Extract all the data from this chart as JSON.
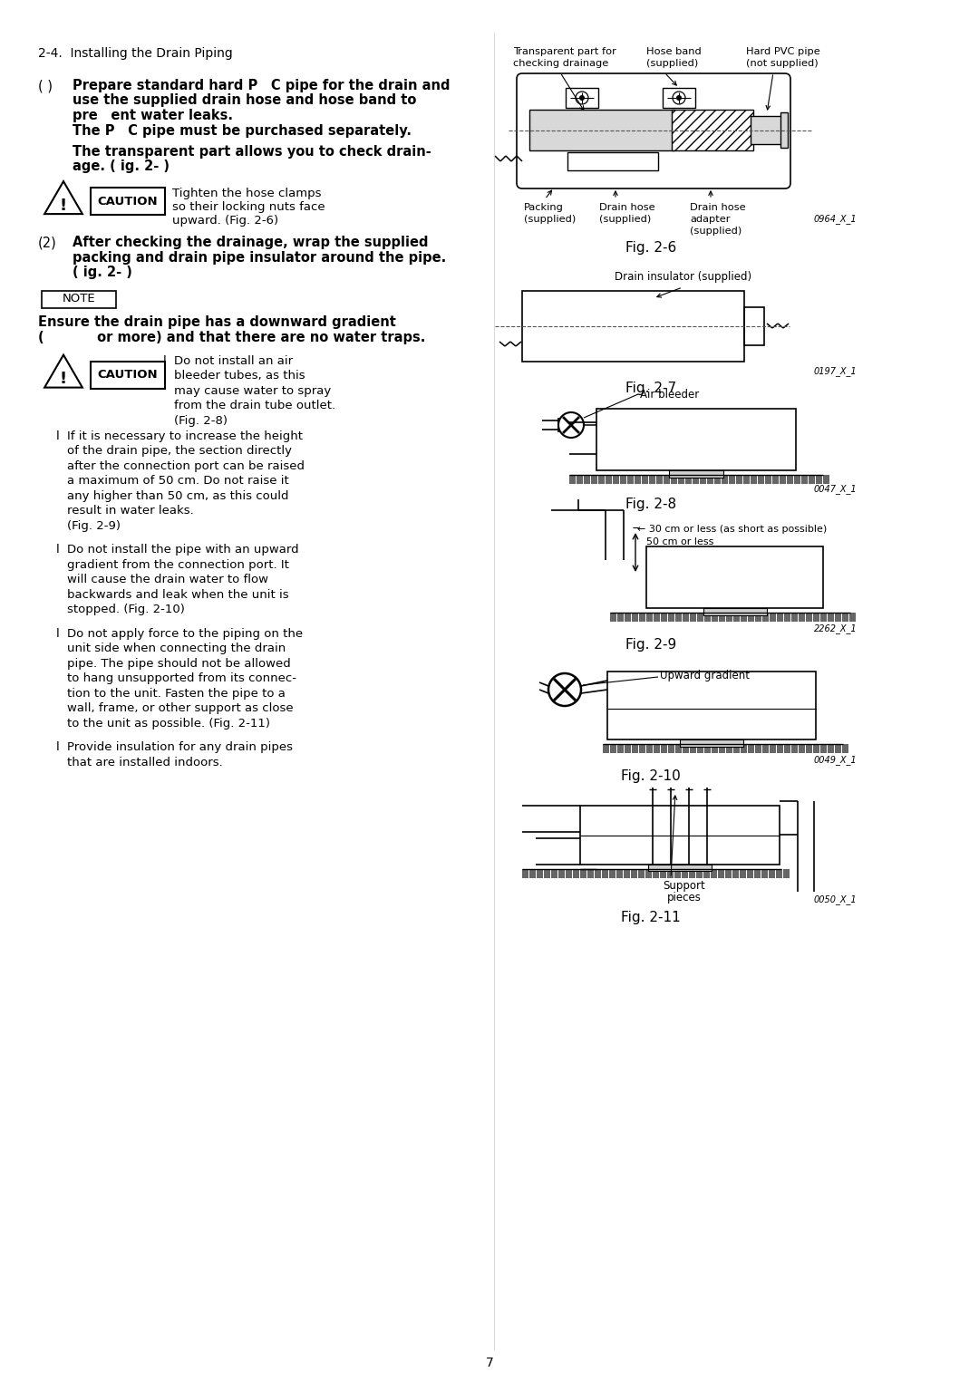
{
  "bg_color": "#ffffff",
  "page_number": "7",
  "section_title": "2-4.  Installing the Drain Piping",
  "left_col": {
    "item1_label": "( )",
    "item1_line1": "Prepare standard hard P C pipe for the drain and",
    "item1_line2": "use the supplied drain hose and hose band to",
    "item1_line3": "pre ent water leaks.",
    "item1_line4": "The P C pipe must be purchased separately.",
    "item1_line5": "The transparent part allows you to check drain-",
    "item1_line6": "age. ( ig. 2- )",
    "caution1_line1": "Tighten the hose clamps",
    "caution1_line2": "so their locking nuts face",
    "caution1_line3": "upward. (Fig. 2-6)",
    "item2_label": "(2)",
    "item2_line1": "After checking the drainage, wrap the supplied",
    "item2_line2": "packing and drain pipe insulator around the pipe.",
    "item2_line3": "( ig. 2- )",
    "note_title": "NOTE",
    "note_line1": "Ensure the drain pipe has a downward gradient",
    "note_line2": "(    or more) and that there are no water traps.",
    "bullet1_marker": "l",
    "bullet1_line1": "Do not install an air",
    "bullet1_line2": "bleeder tubes, as this",
    "bullet1_line3": "may cause water to spray",
    "bullet1_line4": "from the drain tube outlet.",
    "bullet1_line5": "(Fig. 2-8)",
    "bullet2_marker": "l",
    "bullet2_line1": "If it is necessary to increase the height",
    "bullet2_line2": "of the drain pipe, the section directly",
    "bullet2_line3": "after the connection port can be raised",
    "bullet2_line4": "a maximum of 50 cm. Do not raise it",
    "bullet2_line5": "any higher than 50 cm, as this could",
    "bullet2_line6": "result in water leaks.",
    "bullet2_line7": "(Fig. 2-9)",
    "bullet3_marker": "l",
    "bullet3_line1": "Do not install the pipe with an upward",
    "bullet3_line2": "gradient from the connection port. It",
    "bullet3_line3": "will cause the drain water to flow",
    "bullet3_line4": "backwards and leak when the unit is",
    "bullet3_line5": "stopped. (Fig. 2-10)",
    "bullet4_marker": "l",
    "bullet4_line1": "Do not apply force to the piping on the",
    "bullet4_line2": "unit side when connecting the drain",
    "bullet4_line3": "pipe. The pipe should not be allowed",
    "bullet4_line4": "to hang unsupported from its connec-",
    "bullet4_line5": "tion to the unit. Fasten the pipe to a",
    "bullet4_line6": "wall, frame, or other support as close",
    "bullet4_line7": "to the unit as possible. (Fig. 2-11)",
    "bullet5_marker": "l",
    "bullet5_line1": "Provide insulation for any drain pipes",
    "bullet5_line2": "that are installed indoors."
  },
  "right_col": {
    "fig26_label1a": "Transparent part for",
    "fig26_label1b": "checking drainage",
    "fig26_label2a": "Hose band",
    "fig26_label2b": "(supplied)",
    "fig26_label3a": "Hard PVC pipe",
    "fig26_label3b": "(not supplied)",
    "fig26_label4a": "Packing",
    "fig26_label4b": "(supplied)",
    "fig26_label5a": "Drain hose",
    "fig26_label5b": "(supplied)",
    "fig26_label6a": "Drain hose",
    "fig26_label6b": "adapter",
    "fig26_label6c": "(supplied)",
    "fig26_id": "0964_X_1",
    "fig26_caption": "Fig. 2-6",
    "fig27_label": "Drain insulator (supplied)",
    "fig27_id": "0197_X_1",
    "fig27_caption": "Fig. 2-7",
    "fig28_label": "Air bleeder",
    "fig28_id": "0047_X_1",
    "fig28_caption": "Fig. 2-8",
    "fig29_label1": "← 30 cm or less (as short as possible)",
    "fig29_label2": "50 cm or less",
    "fig29_id": "2262_X_1",
    "fig29_caption": "Fig. 2-9",
    "fig210_label": "Upward gradient",
    "fig210_id": "0049_X_1",
    "fig210_caption": "Fig. 2-10",
    "fig211_label1": "Support",
    "fig211_label2": "pieces",
    "fig211_id": "0050_X_1",
    "fig211_caption": "Fig. 2-11"
  }
}
